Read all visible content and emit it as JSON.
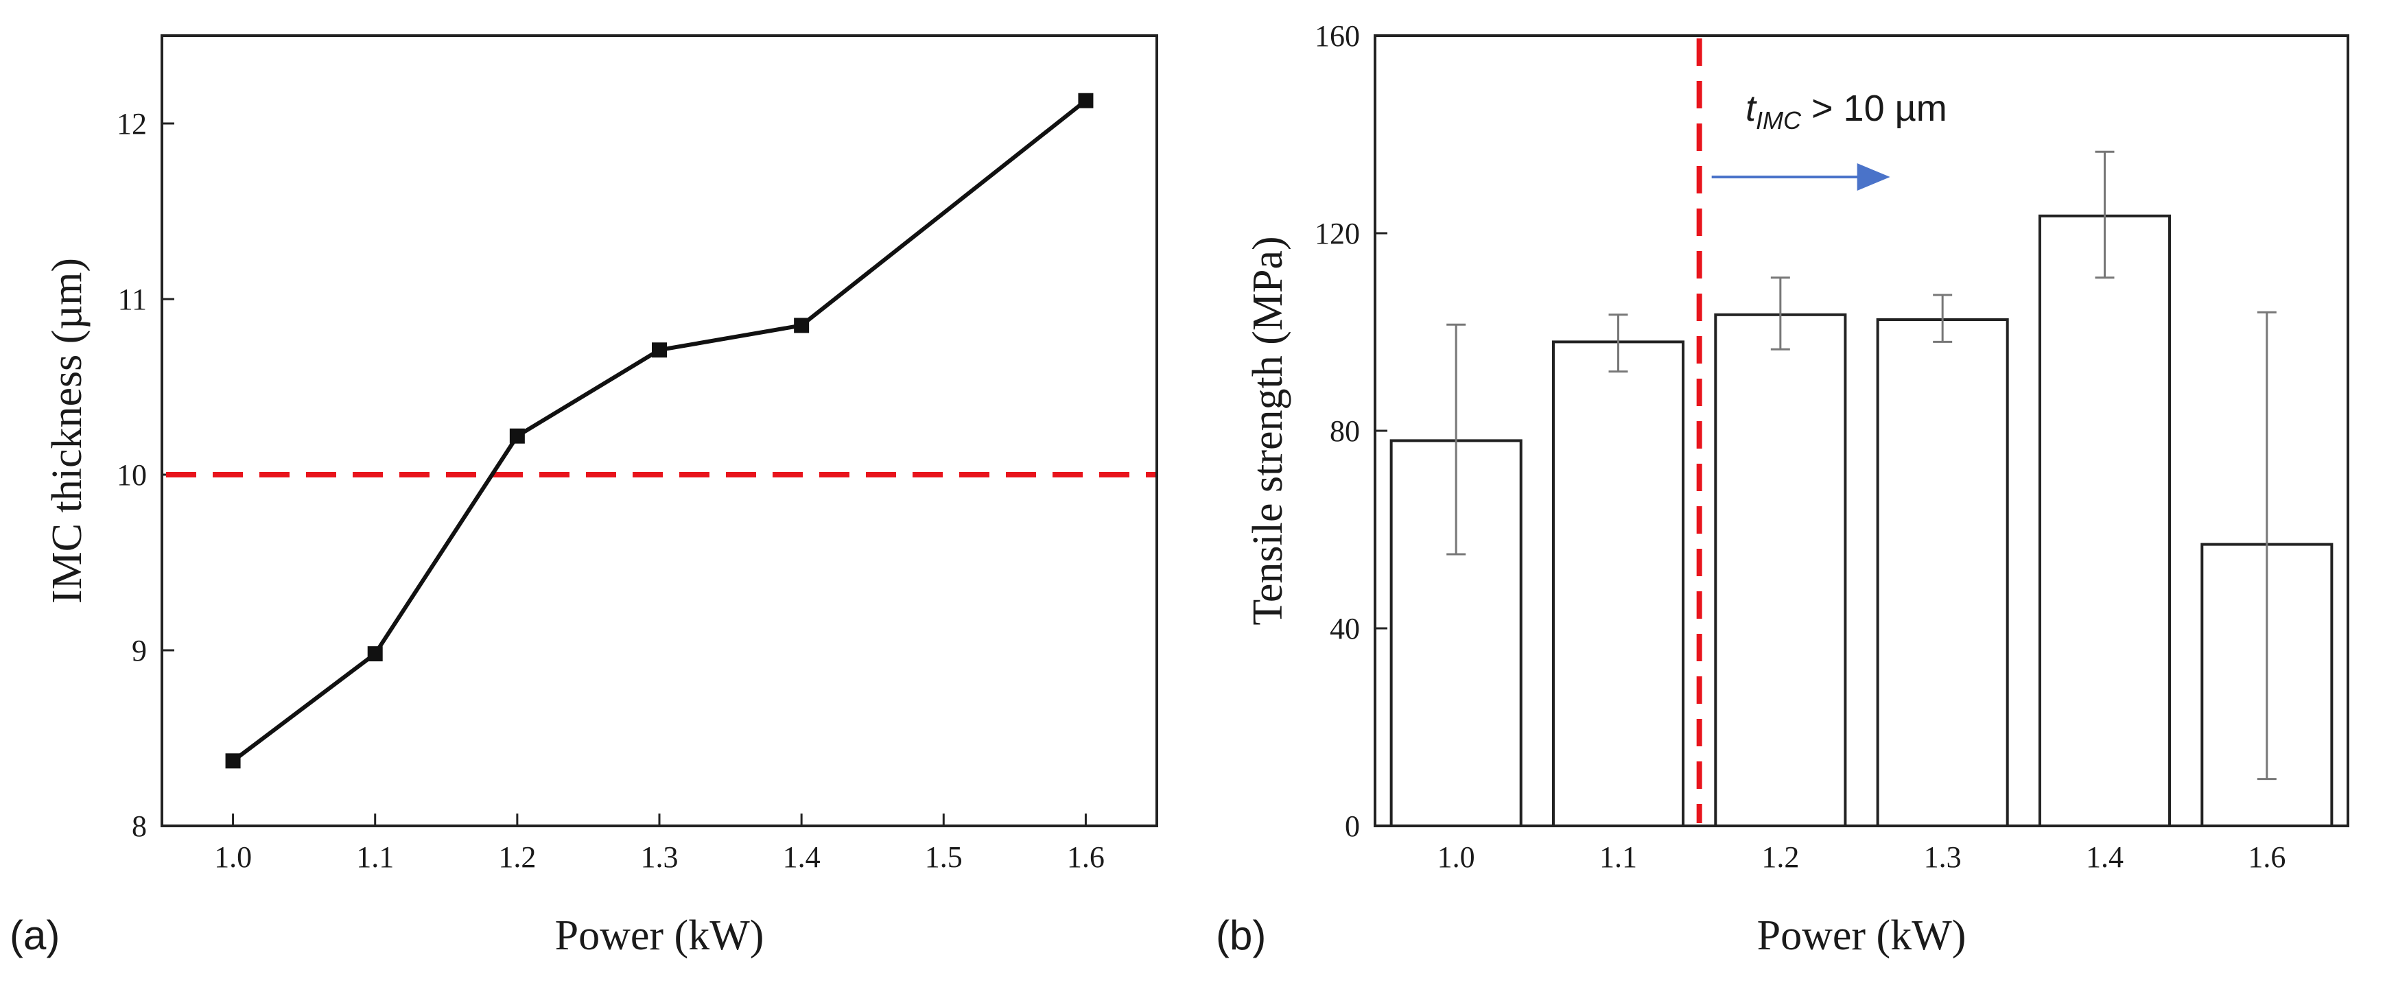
{
  "chart_data": [
    {
      "panel": "(a)",
      "type": "line",
      "xlabel": "Power (kW)",
      "ylabel": "IMC thickness (µm)",
      "xlim": [
        0.95,
        1.65
      ],
      "ylim": [
        8,
        12.5
      ],
      "xticks": [
        "1.0",
        "1.1",
        "1.2",
        "1.3",
        "1.4",
        "1.5",
        "1.6"
      ],
      "yticks": [
        "8",
        "9",
        "10",
        "11",
        "12"
      ],
      "series": [
        {
          "name": "IMC thickness",
          "x": [
            1.0,
            1.1,
            1.2,
            1.3,
            1.4,
            1.6
          ],
          "y": [
            8.37,
            8.98,
            10.22,
            10.71,
            10.85,
            12.13
          ]
        }
      ],
      "reference_line": {
        "y": 10,
        "style": "dashed",
        "color": "#e8141c"
      },
      "grid": false
    },
    {
      "panel": "(b)",
      "type": "bar",
      "xlabel": "Power (kW)",
      "ylabel": "Tensile strength (MPa)",
      "ylim": [
        0,
        160
      ],
      "yticks": [
        "0",
        "40",
        "80",
        "120",
        "160"
      ],
      "categories": [
        "1.0",
        "1.1",
        "1.2",
        "1.3",
        "1.4",
        "1.6"
      ],
      "values": [
        78,
        98,
        103.5,
        102.5,
        123.5,
        57
      ],
      "error_low": [
        55,
        92,
        96.5,
        98,
        111,
        9.5
      ],
      "error_high": [
        101.5,
        103.5,
        111,
        107.5,
        136.5,
        104
      ],
      "divider_after_category": "1.1",
      "annotation": {
        "main": "t",
        "sub": "IMC",
        "tail": " > 10 µm"
      },
      "accent_colors": {
        "divider": "#e8141c",
        "arrow": "#4a73c9"
      },
      "grid": false
    }
  ]
}
